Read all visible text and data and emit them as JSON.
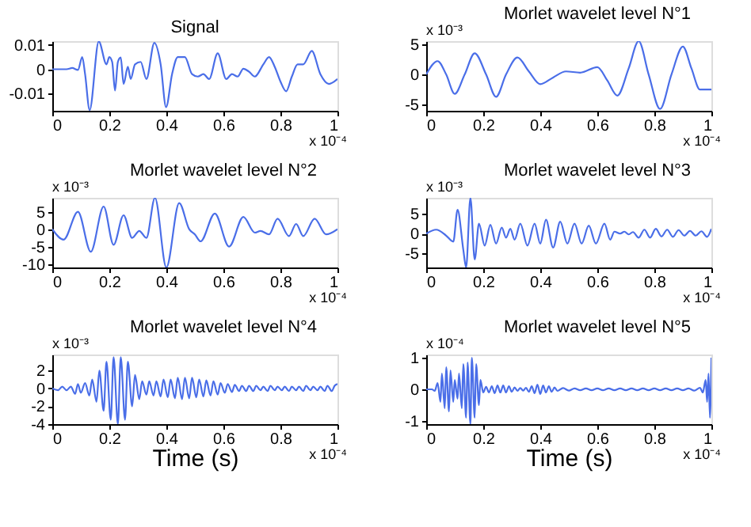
{
  "chart_data": [
    {
      "type": "line",
      "title": "Signal",
      "annotations": [
        "x 10⁻⁴"
      ],
      "xlim": [
        0,
        1
      ],
      "xticks": [
        0,
        0.2,
        0.4,
        0.6,
        0.8,
        1
      ],
      "ylim": [
        -0.017,
        0.0115
      ],
      "yticks": [
        -0.01,
        0,
        0.01
      ],
      "x": [
        0,
        0.05,
        0.07,
        0.09,
        0.105,
        0.115,
        0.131,
        0.163,
        0.19,
        0.2,
        0.21,
        0.22,
        0.23,
        0.24,
        0.25,
        0.265,
        0.275,
        0.29,
        0.31,
        0.33,
        0.358,
        0.38,
        0.399,
        0.42,
        0.44,
        0.465,
        0.49,
        0.51,
        0.53,
        0.55,
        0.58,
        0.61,
        0.63,
        0.65,
        0.67,
        0.69,
        0.71,
        0.74,
        0.76,
        0.78,
        0.8,
        0.82,
        0.84,
        0.86,
        0.88,
        0.91,
        0.94,
        0.97,
        1
      ],
      "series": [
        {
          "color": "#4a6ee8",
          "values": [
            0,
            0,
            0.0005,
            -0.0003,
            0.005,
            -0.002,
            -0.0167,
            0.0114,
            0.002,
            0.005,
            0.003,
            -0.0087,
            0.003,
            0.0048,
            -0.006,
            0.001,
            -0.004,
            0.002,
            0.003,
            -0.004,
            0.0108,
            0.002,
            -0.0155,
            -0.002,
            0.005,
            0.005,
            -0.002,
            -0.003,
            -0.002,
            -0.004,
            0.0065,
            -0.004,
            -0.002,
            -0.003,
            0.0002,
            -0.001,
            -0.003,
            0.002,
            0.005,
            0.001,
            -0.005,
            -0.009,
            -0.003,
            0.002,
            0.002,
            0.0075,
            -0.002,
            -0.006,
            -0.004
          ]
        }
      ]
    },
    {
      "type": "line",
      "title": "Morlet wavelet level N°1",
      "annotations": [
        "x 10⁻⁴",
        "x 10⁻³"
      ],
      "xlim": [
        0,
        1
      ],
      "xticks": [
        0,
        0.2,
        0.4,
        0.6,
        0.8,
        1
      ],
      "ylim": [
        -6,
        5.5
      ],
      "yticks": [
        -5,
        0,
        5
      ],
      "x": [
        0,
        0.04,
        0.07,
        0.1,
        0.135,
        0.17,
        0.21,
        0.245,
        0.28,
        0.32,
        0.36,
        0.4,
        0.445,
        0.49,
        0.54,
        0.6,
        0.635,
        0.67,
        0.71,
        0.745,
        0.78,
        0.82,
        0.86,
        0.9,
        0.93,
        0.96,
        1
      ],
      "series": [
        {
          "color": "#4a6ee8",
          "values": [
            0,
            2.2,
            0,
            -3.2,
            0,
            3.5,
            0,
            -3.7,
            0,
            2.8,
            0.5,
            -1.6,
            -0.5,
            0.5,
            0.3,
            1.2,
            -1,
            -3.5,
            1,
            5.5,
            0,
            -5.7,
            0,
            4.6,
            1,
            -2.5,
            -2.5
          ]
        }
      ]
    },
    {
      "type": "line",
      "title": "Morlet wavelet level N°2",
      "annotations": [
        "x 10⁻⁴",
        "x 10⁻³"
      ],
      "xlim": [
        0,
        1
      ],
      "xticks": [
        0,
        0.2,
        0.4,
        0.6,
        0.8,
        1
      ],
      "ylim": [
        -11,
        9
      ],
      "yticks": [
        -10,
        -5,
        0,
        5
      ],
      "x": [
        0,
        0.04,
        0.09,
        0.135,
        0.18,
        0.215,
        0.25,
        0.28,
        0.305,
        0.33,
        0.36,
        0.4,
        0.445,
        0.48,
        0.5,
        0.52,
        0.57,
        0.62,
        0.67,
        0.71,
        0.73,
        0.76,
        0.79,
        0.83,
        0.855,
        0.88,
        0.92,
        0.96,
        1
      ],
      "series": [
        {
          "color": "#4a6ee8",
          "values": [
            0,
            -3,
            5,
            -6.5,
            6.5,
            -4.5,
            4,
            -2.5,
            -0.5,
            -2.5,
            9,
            -11,
            7.5,
            0,
            -1.5,
            -3.5,
            4.5,
            -5,
            3.5,
            -1,
            -0.5,
            -1.5,
            3,
            -2,
            1.5,
            -2,
            3,
            -1.5,
            0
          ]
        }
      ]
    },
    {
      "type": "line",
      "title": "Morlet wavelet level N°3",
      "annotations": [
        "x 10⁻⁴",
        "x 10⁻³"
      ],
      "xlim": [
        0,
        1
      ],
      "xticks": [
        0,
        0.2,
        0.4,
        0.6,
        0.8,
        1
      ],
      "ylim": [
        -8.5,
        9
      ],
      "yticks": [
        -5,
        0,
        5
      ],
      "x": [
        0,
        0.035,
        0.07,
        0.095,
        0.11,
        0.13,
        0.14,
        0.155,
        0.17,
        0.185,
        0.205,
        0.225,
        0.245,
        0.265,
        0.28,
        0.295,
        0.31,
        0.33,
        0.355,
        0.38,
        0.4,
        0.42,
        0.445,
        0.47,
        0.495,
        0.52,
        0.545,
        0.57,
        0.595,
        0.625,
        0.645,
        0.66,
        0.68,
        0.695,
        0.71,
        0.725,
        0.745,
        0.765,
        0.785,
        0.805,
        0.825,
        0.845,
        0.865,
        0.885,
        0.905,
        0.925,
        0.945,
        0.965,
        0.985,
        1
      ],
      "series": [
        {
          "color": "#4a6ee8",
          "values": [
            0,
            1,
            -0.5,
            -2,
            6,
            -4,
            -8.5,
            9,
            -6.5,
            2.5,
            -3,
            2.2,
            -2.5,
            1.5,
            -1,
            1.2,
            -1.5,
            2.5,
            -3,
            2.5,
            -2.5,
            3.5,
            -3.5,
            3,
            -2.5,
            2.5,
            -2.5,
            2,
            -2.5,
            2.5,
            -1.5,
            0.5,
            0,
            0.5,
            -0.2,
            0.4,
            -1,
            1,
            -1,
            1.2,
            -0.7,
            1,
            -0.8,
            0.9,
            -0.5,
            0.7,
            -0.5,
            0.6,
            -0.8,
            1.2
          ]
        }
      ]
    },
    {
      "type": "line",
      "title": "Morlet wavelet level N°4",
      "xlabel": "Time (s)",
      "annotations": [
        "x 10⁻⁴",
        "x 10⁻³"
      ],
      "xlim": [
        0,
        1
      ],
      "xticks": [
        0,
        0.2,
        0.4,
        0.6,
        0.8,
        1
      ],
      "ylim": [
        -4,
        3.8
      ],
      "yticks": [
        -4,
        -2,
        0,
        2
      ],
      "x": [
        0,
        0.02,
        0.035,
        0.05,
        0.065,
        0.08,
        0.09,
        0.1,
        0.115,
        0.13,
        0.14,
        0.155,
        0.165,
        0.18,
        0.19,
        0.205,
        0.215,
        0.23,
        0.24,
        0.255,
        0.265,
        0.28,
        0.29,
        0.305,
        0.315,
        0.33,
        0.34,
        0.355,
        0.365,
        0.38,
        0.39,
        0.405,
        0.415,
        0.43,
        0.44,
        0.455,
        0.465,
        0.48,
        0.49,
        0.505,
        0.515,
        0.53,
        0.54,
        0.555,
        0.565,
        0.58,
        0.59,
        0.605,
        0.615,
        0.63,
        0.64,
        0.655,
        0.665,
        0.68,
        0.69,
        0.705,
        0.715,
        0.73,
        0.74,
        0.755,
        0.765,
        0.78,
        0.79,
        0.805,
        0.815,
        0.83,
        0.84,
        0.855,
        0.865,
        0.88,
        0.89,
        0.905,
        0.915,
        0.93,
        0.94,
        0.955,
        0.965,
        0.98,
        0.99,
        1
      ],
      "series": [
        {
          "color": "#4a6ee8",
          "values": [
            0,
            -0.2,
            0.2,
            -0.2,
            0.2,
            -0.6,
            0.5,
            -0.5,
            0.6,
            -0.8,
            1,
            -1.5,
            2,
            -2.5,
            3,
            -3.5,
            3.5,
            -4,
            3.5,
            -3.5,
            3,
            -2,
            1.5,
            -1.2,
            0.8,
            -0.7,
            0.8,
            -0.8,
            0.8,
            -0.9,
            1,
            -1,
            1,
            -1.1,
            1.2,
            -1.2,
            1.2,
            -1.1,
            1.2,
            -1,
            1,
            -0.9,
            0.9,
            -0.8,
            0.8,
            -0.7,
            0.6,
            -0.5,
            0.5,
            -0.4,
            0.4,
            -0.3,
            0.3,
            -0.3,
            0.3,
            -0.3,
            0.3,
            -0.2,
            0.2,
            -0.3,
            0.3,
            -0.2,
            0.2,
            -0.2,
            0.2,
            -0.3,
            0.2,
            -0.2,
            0.2,
            -0.3,
            0.3,
            -0.2,
            0.2,
            -0.2,
            0.2,
            -0.3,
            0.3,
            -0.3,
            0.3,
            0.5
          ]
        }
      ]
    },
    {
      "type": "line",
      "title": "Morlet wavelet level N°5",
      "xlabel": "Time (s)",
      "annotations": [
        "x 10⁻⁴",
        "x 10⁻⁴"
      ],
      "xlim": [
        0,
        1
      ],
      "xticks": [
        0,
        0.2,
        0.4,
        0.6,
        0.8,
        1
      ],
      "ylim": [
        -1.1,
        1.1
      ],
      "yticks": [
        -1,
        0,
        1
      ],
      "x": [
        0,
        0.02,
        0.03,
        0.04,
        0.05,
        0.055,
        0.065,
        0.07,
        0.08,
        0.085,
        0.095,
        0.1,
        0.11,
        0.115,
        0.125,
        0.13,
        0.14,
        0.145,
        0.155,
        0.16,
        0.17,
        0.175,
        0.185,
        0.19,
        0.2,
        0.21,
        0.22,
        0.23,
        0.24,
        0.25,
        0.26,
        0.27,
        0.28,
        0.29,
        0.3,
        0.31,
        0.32,
        0.33,
        0.34,
        0.35,
        0.36,
        0.37,
        0.38,
        0.39,
        0.4,
        0.41,
        0.42,
        0.43,
        0.44,
        0.45,
        0.46,
        0.48,
        0.5,
        0.52,
        0.54,
        0.56,
        0.58,
        0.6,
        0.62,
        0.64,
        0.66,
        0.68,
        0.7,
        0.72,
        0.74,
        0.76,
        0.78,
        0.8,
        0.82,
        0.84,
        0.86,
        0.88,
        0.9,
        0.92,
        0.94,
        0.96,
        0.97,
        0.98,
        0.985,
        0.99,
        0.995,
        1
      ],
      "series": [
        {
          "color": "#4a6ee8",
          "values": [
            0,
            0,
            -0.05,
            0.2,
            -0.4,
            0.5,
            -0.6,
            0.7,
            -0.7,
            0.6,
            -0.4,
            0.3,
            -0.3,
            0.5,
            -0.6,
            0.8,
            -0.9,
            0.85,
            -1.1,
            1,
            -0.9,
            0.8,
            -0.5,
            0.3,
            -0.1,
            0.08,
            -0.1,
            0.1,
            -0.12,
            0.12,
            -0.1,
            0.12,
            -0.1,
            0.1,
            -0.08,
            0.06,
            -0.05,
            0.04,
            -0.04,
            0.05,
            -0.08,
            0.1,
            -0.12,
            0.15,
            -0.15,
            0.12,
            -0.1,
            0.1,
            -0.08,
            0.06,
            -0.05,
            0.04,
            -0.04,
            0.03,
            -0.03,
            0.03,
            -0.03,
            0.03,
            -0.03,
            0.03,
            -0.03,
            0.03,
            -0.03,
            0.03,
            -0.03,
            0.03,
            -0.03,
            0.03,
            -0.03,
            0.03,
            -0.03,
            0.03,
            -0.03,
            0.03,
            -0.04,
            0.05,
            -0.1,
            0.3,
            -0.4,
            0.5,
            -0.9,
            1
          ]
        }
      ]
    }
  ]
}
